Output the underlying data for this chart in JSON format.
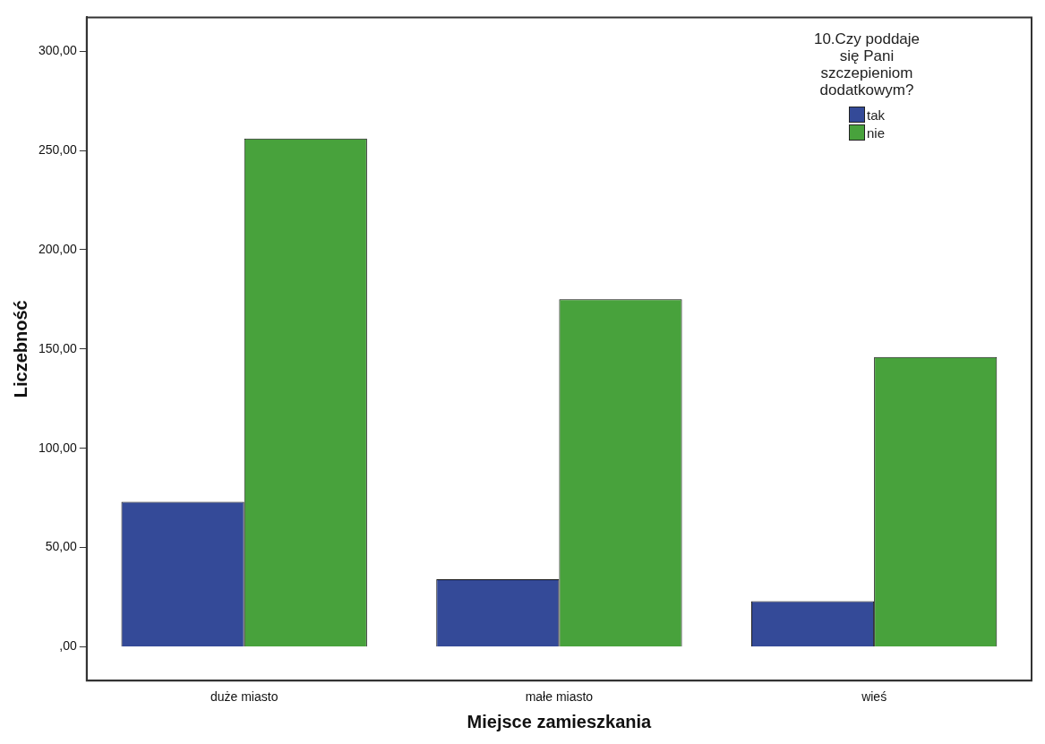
{
  "chart_data": {
    "type": "bar",
    "xlabel": "Miejsce zamieszkania",
    "ylabel": "Liczebność",
    "legend_title": "10.Czy poddaje się Pani szczepieniom dodatkowym?",
    "legend": "top right",
    "grid": false,
    "categories": [
      "duże miasto",
      "małe miasto",
      "wieś"
    ],
    "series": [
      {
        "name": "tak",
        "color": "#344a98",
        "values": [
          73,
          34,
          23
        ]
      },
      {
        "name": "nie",
        "color": "#48a23c",
        "values": [
          256,
          175,
          146
        ]
      }
    ],
    "ylim": [
      -17,
      317
    ],
    "yticks": [
      {
        "value": 0,
        "label": ",00"
      },
      {
        "value": 50,
        "label": "50,00"
      },
      {
        "value": 100,
        "label": "100,00"
      },
      {
        "value": 150,
        "label": "150,00"
      },
      {
        "value": 200,
        "label": "200,00"
      },
      {
        "value": 250,
        "label": "250,00"
      },
      {
        "value": 300,
        "label": "300,00"
      }
    ]
  }
}
